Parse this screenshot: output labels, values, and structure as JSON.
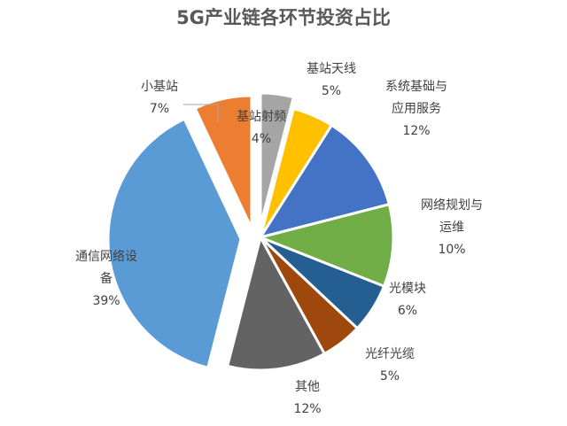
{
  "chart_data": {
    "type": "pie",
    "title": "5G产业链各环节投资占比",
    "slices": [
      {
        "name": "基站射频",
        "value": 4,
        "label": "4%",
        "color": "#a5a5a5"
      },
      {
        "name": "基站天线",
        "value": 5,
        "label": "5%",
        "color": "#ffc000"
      },
      {
        "name": "系统基础与应用服务",
        "value": 12,
        "label": "12%",
        "color": "#4472c4"
      },
      {
        "name": "网络规划与运维",
        "value": 10,
        "label": "10%",
        "color": "#70ad47"
      },
      {
        "name": "光模块",
        "value": 6,
        "label": "6%",
        "color": "#255e91"
      },
      {
        "name": "光纤光缆",
        "value": 5,
        "label": "5%",
        "color": "#9e480e"
      },
      {
        "name": "其他",
        "value": 12,
        "label": "12%",
        "color": "#636363"
      },
      {
        "name": "通信网络设备",
        "value": 39,
        "label": "39%",
        "color": "#5b9bd5"
      },
      {
        "name": "小基站",
        "value": 7,
        "label": "7%",
        "color": "#ed7d31"
      }
    ],
    "name_lines": [
      [
        "基站射频"
      ],
      [
        "基站天线"
      ],
      [
        "系统基础与",
        "应用服务"
      ],
      [
        "网络规划与",
        "运维"
      ],
      [
        "光模块"
      ],
      [
        "光纤光缆"
      ],
      [
        "其他"
      ],
      [
        "通信网络设",
        "备"
      ],
      [
        "小基站"
      ]
    ],
    "legend": "none"
  }
}
